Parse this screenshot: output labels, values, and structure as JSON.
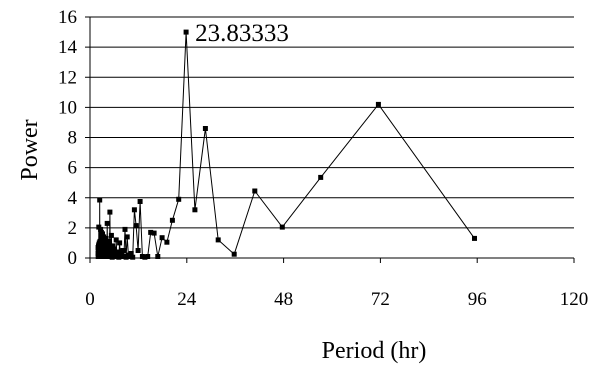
{
  "chart_data": {
    "type": "line",
    "xlabel": "Period (hr)",
    "ylabel": "Power",
    "xlim": [
      0,
      120
    ],
    "ylim": [
      0,
      16
    ],
    "x_ticks": [
      0,
      24,
      48,
      72,
      96,
      120
    ],
    "y_ticks": [
      0,
      2,
      4,
      6,
      8,
      10,
      12,
      14,
      16
    ],
    "grid": "horizontal",
    "legend": "none",
    "colors": {
      "line": "#000000",
      "marker": "#000000"
    },
    "annotations": [
      {
        "text": "23.83333",
        "x": 23.83,
        "y": 15.0
      }
    ],
    "series": [
      {
        "x": [
          95.33,
          71.5,
          57.2,
          47.67,
          40.86,
          35.75,
          31.78,
          28.6,
          26.0,
          23.83,
          22.0,
          20.43,
          19.07,
          17.88,
          16.82,
          15.89,
          15.05,
          14.3,
          13.62,
          13.0,
          12.43,
          11.92,
          11.44,
          11.0,
          10.59,
          10.21,
          9.86,
          9.53,
          9.23,
          8.94,
          8.67,
          8.41,
          8.17,
          7.95,
          7.73,
          7.53,
          7.33,
          7.15,
          6.98,
          6.81,
          6.65,
          6.5,
          6.36,
          6.22,
          6.08,
          5.96,
          5.84,
          5.72,
          5.61,
          5.5,
          5.4,
          5.3,
          5.2,
          5.11,
          5.02,
          4.93,
          4.85,
          4.77,
          4.69,
          4.62,
          4.54,
          4.47,
          4.4,
          4.34,
          4.27,
          4.21,
          4.15,
          4.09,
          4.03,
          3.97,
          3.92,
          3.86,
          3.81,
          3.76,
          3.71,
          3.66,
          3.62,
          3.57,
          3.53,
          3.48,
          3.44,
          3.4,
          3.36,
          3.32,
          3.28,
          3.24,
          3.2,
          3.17,
          3.13,
          3.1,
          3.06,
          3.03,
          3.0,
          2.97,
          2.94,
          2.91,
          2.88,
          2.85,
          2.82,
          2.79,
          2.76,
          2.73,
          2.71,
          2.68,
          2.65,
          2.63,
          2.6,
          2.58,
          2.56,
          2.53,
          2.51,
          2.49,
          2.47,
          2.44,
          2.42,
          2.4,
          2.38,
          2.36,
          2.34,
          2.32,
          2.3,
          2.28,
          2.26,
          2.24,
          2.22,
          2.2,
          2.19,
          2.17,
          2.15,
          2.14,
          2.12,
          2.1,
          2.09,
          2.07,
          2.05,
          2.04,
          2.02,
          2.01
        ],
        "y": [
          1.3,
          10.2,
          5.35,
          2.05,
          4.45,
          0.25,
          1.2,
          8.6,
          3.2,
          15.0,
          3.9,
          2.5,
          1.05,
          1.35,
          0.1,
          1.65,
          1.7,
          0.1,
          0.05,
          0.1,
          3.75,
          0.5,
          2.15,
          3.2,
          0.05,
          0.3,
          0.1,
          0.2,
          1.4,
          0.05,
          1.9,
          0.1,
          0.5,
          0.15,
          0.3,
          0.1,
          1.0,
          0.05,
          0.4,
          0.1,
          0.2,
          1.2,
          0.3,
          0.1,
          0.6,
          0.2,
          0.4,
          0.1,
          0.8,
          0.05,
          0.3,
          1.5,
          0.2,
          0.1,
          0.7,
          3.05,
          0.1,
          0.3,
          1.1,
          0.2,
          0.5,
          0.1,
          0.9,
          0.2,
          2.3,
          0.4,
          0.1,
          0.6,
          0.2,
          1.3,
          0.1,
          0.5,
          0.3,
          1.0,
          0.1,
          0.4,
          0.2,
          0.8,
          0.1,
          0.6,
          0.3,
          1.4,
          0.2,
          0.1,
          0.5,
          0.3,
          0.9,
          0.1,
          0.4,
          1.6,
          0.2,
          0.1,
          0.7,
          0.3,
          1.2,
          0.1,
          0.5,
          0.2,
          1.7,
          0.1,
          0.3,
          0.9,
          0.2,
          0.1,
          0.6,
          1.9,
          0.2,
          0.4,
          0.1,
          0.8,
          0.3,
          1.1,
          0.1,
          0.5,
          0.2,
          3.85,
          0.1,
          0.4,
          0.7,
          0.2,
          1.0,
          0.1,
          0.3,
          0.6,
          0.2,
          0.9,
          0.1,
          2.05,
          0.3,
          0.5,
          0.1,
          0.8,
          0.2,
          0.4,
          0.6,
          0.1,
          0.3,
          0.7
        ]
      }
    ]
  }
}
